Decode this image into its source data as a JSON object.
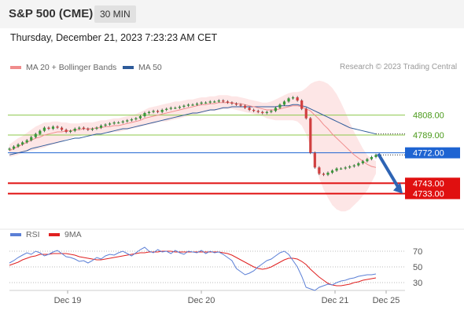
{
  "header": {
    "instrument": "S&P 500 (CME)",
    "timeframe": "30 MIN"
  },
  "datetime": "Thursday, December 21, 2023 7:23:23 AM CET",
  "main_legend": [
    {
      "label": "MA 20 + Bollinger Bands",
      "color": "#f08c8c"
    },
    {
      "label": "MA 50",
      "color": "#2e5b9a"
    }
  ],
  "copyright": "Research © 2023 Trading Central",
  "rsi_legend": [
    {
      "label": "RSI",
      "color": "#5b7fd6"
    },
    {
      "label": "9MA",
      "color": "#e02020"
    }
  ],
  "colors": {
    "up_candle": "#3a9a3a",
    "down_candle": "#d04040",
    "bollinger_fill": "#fde3e3",
    "ma20": "#f08c8c",
    "ma50": "#2e5b9a",
    "pivot": "#1e64d2",
    "support": "#e01010",
    "resistance": "#8cc84b",
    "resistance_label": "#4a9a1a",
    "arrow": "#2e64b4"
  },
  "chart_data": [
    {
      "type": "line",
      "chart": "price",
      "y_range": [
        4705,
        4846
      ],
      "x_labels": [
        "Dec 19",
        "Dec 20",
        "Dec 21",
        "Dec 25"
      ],
      "levels": [
        {
          "value": 4808.0,
          "label": "4808.00",
          "kind": "resistance"
        },
        {
          "value": 4789.0,
          "label": "4789.00",
          "kind": "resistance"
        },
        {
          "value": 4772.0,
          "label": "4772.00",
          "kind": "pivot"
        },
        {
          "value": 4743.0,
          "label": "4743.00",
          "kind": "support"
        },
        {
          "value": 4733.0,
          "label": "4733.00",
          "kind": "support"
        }
      ],
      "closes": [
        4776,
        4778,
        4780,
        4782,
        4784,
        4787,
        4790,
        4793,
        4796,
        4795,
        4797,
        4796,
        4794,
        4792,
        4793,
        4795,
        4796,
        4795,
        4794,
        4795,
        4796,
        4798,
        4799,
        4800,
        4801,
        4801,
        4802,
        4803,
        4804,
        4805,
        4807,
        4810,
        4811,
        4812,
        4811,
        4813,
        4814,
        4815,
        4815,
        4816,
        4817,
        4818,
        4818,
        4819,
        4820,
        4820,
        4821,
        4821,
        4822,
        4821,
        4820,
        4819,
        4818,
        4817,
        4815,
        4813,
        4812,
        4811,
        4810,
        4811,
        4812,
        4815,
        4818,
        4821,
        4824,
        4825,
        4822,
        4814,
        4805,
        4772,
        4758,
        4752,
        4751,
        4753,
        4755,
        4757,
        4757,
        4758,
        4759,
        4760,
        4762,
        4764,
        4766,
        4768,
        4770
      ],
      "ma20": [
        4774,
        4776,
        4778,
        4780,
        4782,
        4784,
        4786,
        4787,
        4789,
        4790,
        4791,
        4792,
        4792,
        4793,
        4793,
        4794,
        4794,
        4795,
        4795,
        4795,
        4796,
        4796,
        4797,
        4797,
        4798,
        4798,
        4799,
        4800,
        4801,
        4802,
        4803,
        4805,
        4806,
        4807,
        4808,
        4809,
        4810,
        4811,
        4812,
        4813,
        4814,
        4815,
        4816,
        4817,
        4818,
        4818,
        4819,
        4819,
        4820,
        4820,
        4820,
        4820,
        4819,
        4819,
        4818,
        4817,
        4816,
        4815,
        4814,
        4813,
        4813,
        4813,
        4814,
        4815,
        4816,
        4817,
        4817,
        4816,
        4814,
        4812,
        4808,
        4804,
        4799,
        4795,
        4790,
        4786,
        4782,
        4778,
        4774,
        4770,
        4767,
        4764,
        4761,
        4759,
        4758
      ],
      "bb_upper": [
        4780,
        4783,
        4786,
        4788,
        4791,
        4794,
        4797,
        4799,
        4801,
        4801,
        4802,
        4802,
        4801,
        4801,
        4800,
        4800,
        4800,
        4801,
        4801,
        4801,
        4802,
        4803,
        4803,
        4804,
        4805,
        4805,
        4806,
        4807,
        4808,
        4809,
        4811,
        4813,
        4815,
        4816,
        4817,
        4818,
        4819,
        4820,
        4821,
        4821,
        4822,
        4823,
        4823,
        4824,
        4825,
        4825,
        4826,
        4826,
        4827,
        4827,
        4827,
        4826,
        4826,
        4825,
        4824,
        4823,
        4822,
        4821,
        4820,
        4820,
        4821,
        4823,
        4825,
        4827,
        4829,
        4830,
        4830,
        4831,
        4834,
        4838,
        4840,
        4841,
        4840,
        4838,
        4834,
        4828,
        4820,
        4811,
        4801,
        4792,
        4784,
        4776,
        4770,
        4766,
        4764
      ],
      "bb_lower": [
        4768,
        4769,
        4770,
        4772,
        4773,
        4774,
        4775,
        4776,
        4777,
        4779,
        4780,
        4781,
        4783,
        4785,
        4786,
        4788,
        4788,
        4789,
        4789,
        4789,
        4790,
        4790,
        4791,
        4791,
        4792,
        4792,
        4793,
        4794,
        4795,
        4796,
        4797,
        4798,
        4799,
        4800,
        4801,
        4802,
        4802,
        4803,
        4804,
        4805,
        4806,
        4807,
        4808,
        4809,
        4810,
        4811,
        4812,
        4812,
        4813,
        4814,
        4814,
        4814,
        4813,
        4812,
        4811,
        4810,
        4809,
        4808,
        4807,
        4805,
        4804,
        4803,
        4803,
        4803,
        4803,
        4803,
        4802,
        4798,
        4790,
        4778,
        4762,
        4748,
        4737,
        4729,
        4722,
        4718,
        4716,
        4716,
        4718,
        4722,
        4726,
        4731,
        4736,
        4744,
        4752
      ],
      "ma50": [
        4770,
        4771,
        4772,
        4773,
        4774,
        4776,
        4777,
        4778,
        4779,
        4780,
        4781,
        4782,
        4783,
        4784,
        4785,
        4786,
        4786,
        4787,
        4788,
        4789,
        4790,
        4790,
        4791,
        4792,
        4793,
        4794,
        4795,
        4795,
        4796,
        4797,
        4798,
        4799,
        4800,
        4801,
        4802,
        4803,
        4804,
        4805,
        4806,
        4807,
        4808,
        4809,
        4810,
        4810,
        4811,
        4812,
        4813,
        4813,
        4814,
        4815,
        4815,
        4816,
        4816,
        4816,
        4816,
        4816,
        4816,
        4816,
        4816,
        4816,
        4816,
        4816,
        4817,
        4817,
        4817,
        4818,
        4818,
        4817,
        4816,
        4814,
        4812,
        4810,
        4808,
        4806,
        4804,
        4802,
        4800,
        4798,
        4796,
        4795,
        4794,
        4793,
        4792,
        4791,
        4790
      ],
      "forecast_arrow": {
        "from": 4771,
        "to": 4733
      }
    },
    {
      "type": "line",
      "chart": "rsi",
      "y_range": [
        20,
        80
      ],
      "y_ticks": [
        70,
        50,
        30
      ],
      "series": [
        {
          "name": "RSI",
          "values": [
            55,
            58,
            62,
            65,
            68,
            66,
            70,
            68,
            64,
            66,
            69,
            71,
            67,
            63,
            62,
            60,
            57,
            58,
            55,
            58,
            62,
            60,
            64,
            66,
            65,
            68,
            70,
            67,
            64,
            68,
            72,
            75,
            70,
            68,
            72,
            69,
            70,
            67,
            71,
            68,
            66,
            70,
            69,
            68,
            71,
            67,
            70,
            68,
            69,
            66,
            62,
            58,
            48,
            44,
            40,
            42,
            45,
            50,
            54,
            58,
            60,
            64,
            68,
            70,
            66,
            58,
            50,
            38,
            24,
            22,
            20,
            24,
            26,
            28,
            27,
            30,
            32,
            33,
            35,
            36,
            38,
            39,
            40,
            40,
            41
          ]
        },
        {
          "name": "9MA",
          "values": [
            52,
            54,
            56,
            59,
            61,
            63,
            64,
            66,
            66,
            66,
            67,
            67,
            67,
            67,
            66,
            65,
            63,
            62,
            61,
            60,
            59,
            59,
            60,
            61,
            62,
            63,
            64,
            65,
            66,
            67,
            68,
            68,
            69,
            69,
            69,
            70,
            70,
            70,
            69,
            69,
            69,
            69,
            69,
            69,
            69,
            69,
            69,
            69,
            69,
            68,
            67,
            65,
            62,
            59,
            56,
            53,
            50,
            48,
            47,
            48,
            50,
            53,
            56,
            59,
            61,
            61,
            60,
            57,
            53,
            47,
            42,
            37,
            33,
            29,
            27,
            26,
            26,
            27,
            28,
            30,
            31,
            33,
            34,
            35,
            36
          ]
        }
      ]
    }
  ]
}
